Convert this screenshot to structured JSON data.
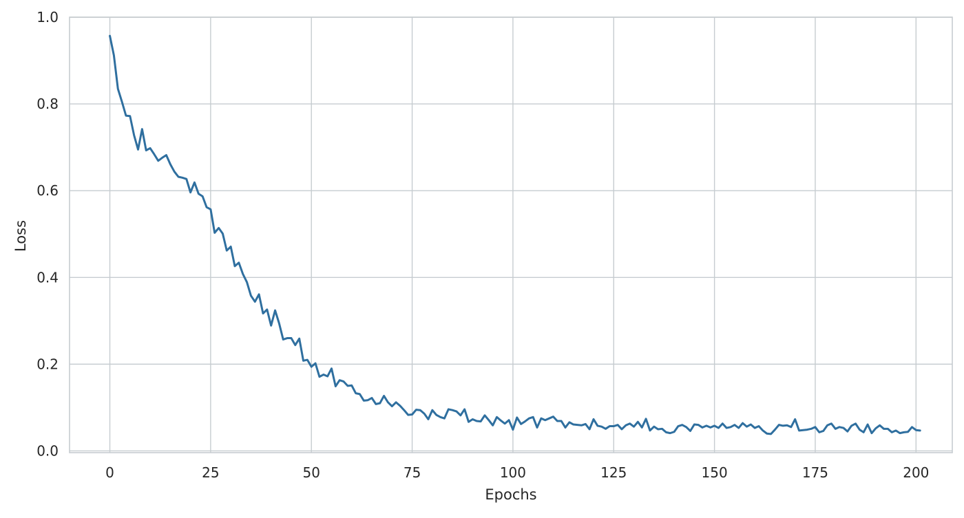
{
  "chart_data": {
    "type": "line",
    "title": "",
    "xlabel": "Epochs",
    "ylabel": "Loss",
    "xlim": [
      -10,
      209
    ],
    "ylim": [
      0.0,
      1.0
    ],
    "xticks": [
      0,
      25,
      50,
      75,
      100,
      125,
      150,
      175,
      200
    ],
    "yticks": [
      0.0,
      0.2,
      0.4,
      0.6,
      0.8,
      1.0
    ],
    "xtick_labels": [
      "0",
      "25",
      "50",
      "75",
      "100",
      "125",
      "150",
      "175",
      "200"
    ],
    "ytick_labels": [
      "0.0",
      "0.2",
      "0.4",
      "0.6",
      "0.8",
      "1.0"
    ],
    "grid": true,
    "line_color": "#2f6f9f",
    "grid_color": "#c6ccd0",
    "axis_color": "#c6ccd0",
    "series": [
      {
        "values": [
          0.957,
          0.912,
          0.835,
          0.805,
          0.773,
          0.772,
          0.728,
          0.695,
          0.742,
          0.693,
          0.698,
          0.684,
          0.669,
          0.676,
          0.682,
          0.661,
          0.644,
          0.632,
          0.63,
          0.627,
          0.596,
          0.619,
          0.593,
          0.587,
          0.562,
          0.557,
          0.503,
          0.514,
          0.501,
          0.462,
          0.471,
          0.426,
          0.434,
          0.408,
          0.389,
          0.358,
          0.344,
          0.361,
          0.317,
          0.326,
          0.289,
          0.324,
          0.294,
          0.257,
          0.26,
          0.26,
          0.244,
          0.259,
          0.208,
          0.21,
          0.194,
          0.202,
          0.171,
          0.176,
          0.172,
          0.19,
          0.149,
          0.163,
          0.16,
          0.15,
          0.151,
          0.133,
          0.131,
          0.116,
          0.117,
          0.122,
          0.108,
          0.11,
          0.127,
          0.112,
          0.103,
          0.112,
          0.104,
          0.094,
          0.083,
          0.084,
          0.095,
          0.094,
          0.086,
          0.073,
          0.094,
          0.083,
          0.078,
          0.075,
          0.096,
          0.094,
          0.091,
          0.082,
          0.096,
          0.067,
          0.073,
          0.069,
          0.068,
          0.082,
          0.071,
          0.059,
          0.078,
          0.07,
          0.063,
          0.071,
          0.049,
          0.077,
          0.062,
          0.068,
          0.075,
          0.078,
          0.054,
          0.075,
          0.071,
          0.075,
          0.079,
          0.069,
          0.069,
          0.054,
          0.066,
          0.061,
          0.06,
          0.059,
          0.062,
          0.05,
          0.073,
          0.058,
          0.056,
          0.051,
          0.057,
          0.057,
          0.06,
          0.05,
          0.059,
          0.063,
          0.056,
          0.067,
          0.054,
          0.074,
          0.047,
          0.056,
          0.05,
          0.051,
          0.043,
          0.041,
          0.044,
          0.057,
          0.06,
          0.055,
          0.046,
          0.061,
          0.06,
          0.054,
          0.058,
          0.054,
          0.058,
          0.053,
          0.063,
          0.053,
          0.055,
          0.06,
          0.053,
          0.064,
          0.056,
          0.061,
          0.053,
          0.057,
          0.047,
          0.04,
          0.039,
          0.049,
          0.06,
          0.058,
          0.059,
          0.055,
          0.073,
          0.047,
          0.048,
          0.049,
          0.051,
          0.055,
          0.043,
          0.046,
          0.059,
          0.063,
          0.051,
          0.055,
          0.053,
          0.045,
          0.058,
          0.063,
          0.049,
          0.043,
          0.061,
          0.041,
          0.052,
          0.059,
          0.051,
          0.051,
          0.043,
          0.047,
          0.041,
          0.043,
          0.044,
          0.055,
          0.048,
          0.047
        ]
      }
    ]
  }
}
